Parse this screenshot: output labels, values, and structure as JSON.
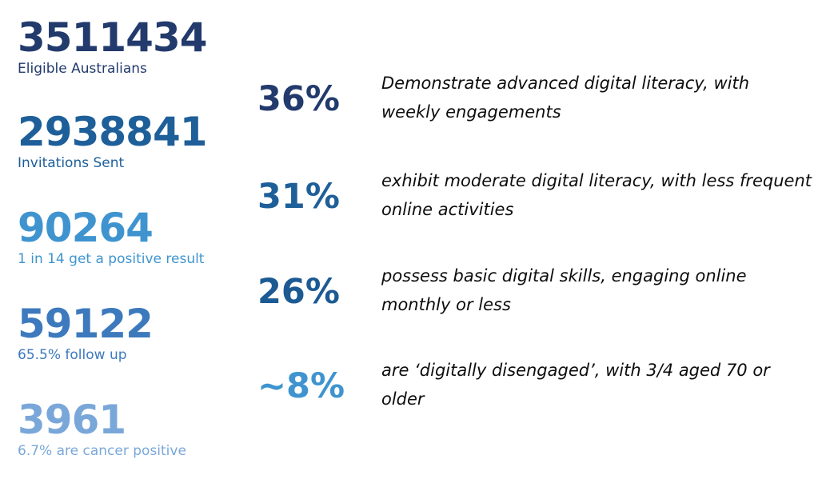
{
  "stats": [
    {
      "value": "3511434",
      "label": "Eligible Australians"
    },
    {
      "value": "2938841",
      "label": "Invitations Sent"
    },
    {
      "value": "90264",
      "label": "1 in 14 get a positive result"
    },
    {
      "value": "59122",
      "label": "65.5% follow up"
    },
    {
      "value": "3961",
      "label": "6.7% are cancer positive"
    }
  ],
  "literacy": [
    {
      "percent": "36%",
      "text": "Demonstrate advanced digital literacy, with weekly engagements"
    },
    {
      "percent": "31%",
      "text": "exhibit moderate digital literacy, with less frequent online activities"
    },
    {
      "percent": "26%",
      "text": "possess basic digital skills, engaging online monthly or less"
    },
    {
      "percent": "~8%",
      "text": "are ‘digitally disengaged’, with 3/4 aged 70 or older"
    }
  ],
  "colors": {
    "navy": "#223a6c",
    "blue": "#1e5f99",
    "sky": "#3f94cf",
    "mid_blue": "#3d79bd",
    "light_blue": "#7aa7d9",
    "text": "#0d0d0d"
  }
}
